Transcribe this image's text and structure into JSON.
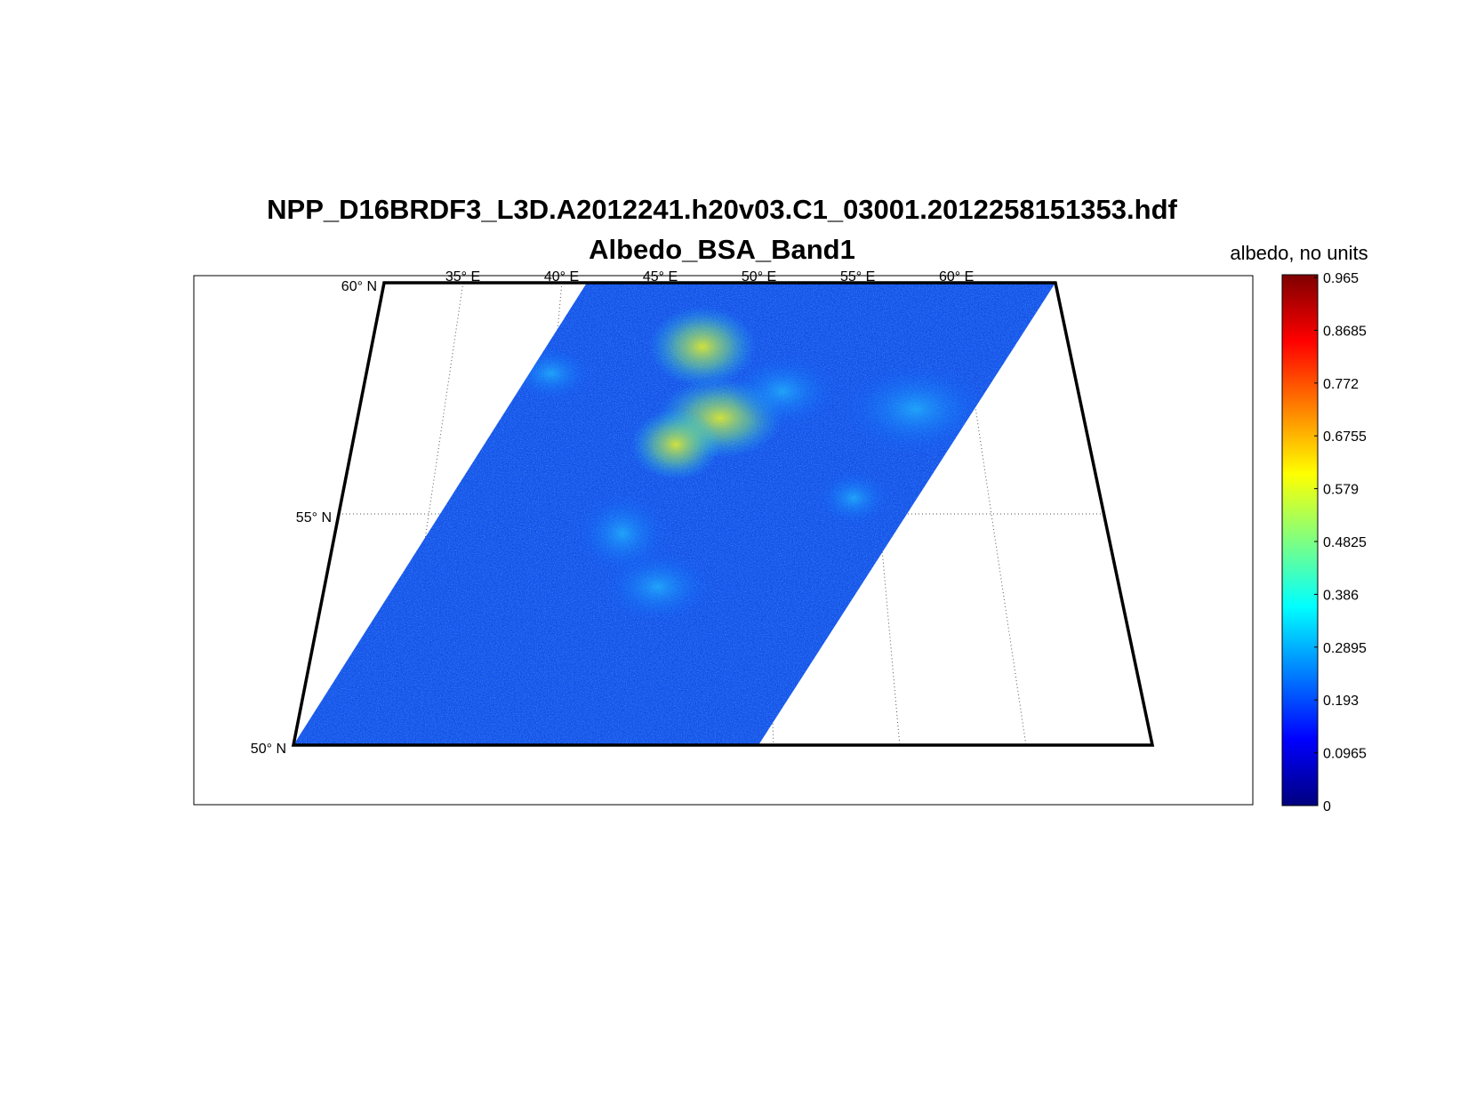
{
  "figure": {
    "title_line1": "NPP_D16BRDF3_L3D.A2012241.h20v03.C1_03001.2012258151353.hdf",
    "title_line2": "Albedo_BSA_Band1"
  },
  "map": {
    "lon_labels": [
      "35° E",
      "40° E",
      "45° E",
      "50° E",
      "55° E",
      "60° E"
    ],
    "lat_labels": [
      "60° N",
      "55° N",
      "50° N"
    ],
    "lon_values": [
      35,
      40,
      45,
      50,
      55,
      60
    ],
    "lat_values": [
      60,
      55,
      50
    ],
    "lon_range": [
      31,
      65
    ],
    "lat_range": [
      50,
      60
    ]
  },
  "colorbar": {
    "title": "albedo, no units",
    "ticks": [
      "0.965",
      "0.8685",
      "0.772",
      "0.6755",
      "0.579",
      "0.4825",
      "0.386",
      "0.2895",
      "0.193",
      "0.0965",
      "0"
    ],
    "min": 0,
    "max": 0.965,
    "colormap": "jet",
    "colors": [
      "#00007f",
      "#0000ff",
      "#007fff",
      "#00ffff",
      "#7fff7f",
      "#ffff00",
      "#ff7f00",
      "#ff0000",
      "#7f0000"
    ]
  },
  "chart_data": {
    "type": "heatmap",
    "title": "NPP_D16BRDF3_L3D.A2012241.h20v03.C1_03001.2012258151353.hdf",
    "subtitle": "Albedo_BSA_Band1",
    "variable": "Albedo_BSA_Band1",
    "colorbar_label": "albedo, no units",
    "value_range": [
      0,
      0.965
    ],
    "lon_range": [
      31,
      65
    ],
    "lat_range": [
      50,
      60
    ],
    "lon_ticks": [
      35,
      40,
      45,
      50,
      55,
      60
    ],
    "lat_ticks": [
      50,
      55,
      60
    ],
    "dominant_value_range": [
      0.05,
      0.35
    ],
    "max_observed_approx": 0.6
  }
}
